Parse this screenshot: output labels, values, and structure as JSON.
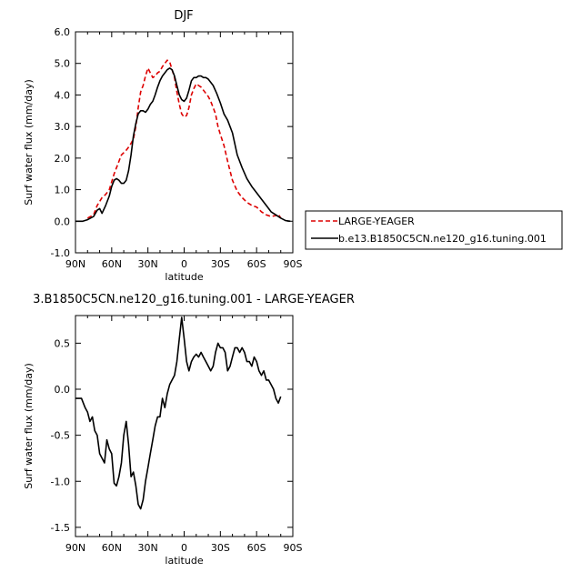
{
  "chart_data": [
    {
      "type": "line",
      "title": "DJF",
      "xlabel": "latitude",
      "ylabel": "Surf water flux (mm/day)",
      "xlim": [
        90,
        -90
      ],
      "ylim": [
        -1.0,
        6.0
      ],
      "x_ticks": [
        90,
        60,
        30,
        0,
        -30,
        -60,
        -90
      ],
      "x_tick_labels": [
        "90N",
        "60N",
        "30N",
        "0",
        "30S",
        "60S",
        "90S"
      ],
      "y_ticks": [
        -1.0,
        0.0,
        1.0,
        2.0,
        3.0,
        4.0,
        5.0,
        6.0
      ],
      "y_tick_labels": [
        "-1.0",
        "0.0",
        "1.0",
        "2.0",
        "3.0",
        "4.0",
        "5.0",
        "6.0"
      ],
      "grid": false,
      "legend": "right",
      "series": [
        {
          "name": "LARGE-YEAGER",
          "color": "#dd0000",
          "dash": true,
          "x": [
            80,
            75,
            72,
            68,
            65,
            62,
            58,
            55,
            52,
            48,
            45,
            42,
            40,
            38,
            36,
            34,
            32,
            30,
            28,
            26,
            24,
            22,
            20,
            18,
            16,
            14,
            12,
            10,
            8,
            6,
            4,
            2,
            0,
            -2,
            -4,
            -6,
            -8,
            -10,
            -12,
            -14,
            -16,
            -18,
            -20,
            -22,
            -24,
            -26,
            -28,
            -30,
            -33,
            -36,
            -40,
            -44,
            -48,
            -52,
            -56,
            -60,
            -64,
            -68,
            -72,
            -76,
            -78,
            -80
          ],
          "y": [
            0.1,
            0.2,
            0.5,
            0.75,
            0.85,
            1.0,
            1.5,
            1.8,
            2.1,
            2.25,
            2.4,
            2.6,
            3.0,
            3.6,
            4.1,
            4.3,
            4.6,
            4.85,
            4.7,
            4.55,
            4.6,
            4.7,
            4.75,
            4.9,
            5.0,
            5.1,
            5.05,
            4.8,
            4.55,
            4.1,
            3.7,
            3.4,
            3.3,
            3.35,
            3.6,
            4.0,
            4.2,
            4.35,
            4.3,
            4.25,
            4.15,
            4.05,
            3.95,
            3.8,
            3.6,
            3.4,
            3.0,
            2.75,
            2.4,
            1.9,
            1.3,
            0.95,
            0.75,
            0.6,
            0.5,
            0.45,
            0.3,
            0.2,
            0.15,
            0.18,
            0.22,
            0.1
          ]
        },
        {
          "name": "b.e13.B1850C5CN.ne120_g16.tuning.001",
          "color": "#000000",
          "dash": false,
          "x": [
            90,
            84,
            80,
            75,
            72,
            70,
            68,
            65,
            62,
            60,
            58,
            56,
            54,
            52,
            50,
            48,
            46,
            44,
            42,
            40,
            38,
            36,
            34,
            32,
            30,
            28,
            26,
            24,
            22,
            20,
            18,
            16,
            14,
            12,
            10,
            8,
            6,
            4,
            2,
            0,
            -2,
            -4,
            -6,
            -8,
            -10,
            -12,
            -14,
            -16,
            -18,
            -20,
            -22,
            -24,
            -27,
            -30,
            -33,
            -36,
            -40,
            -44,
            -48,
            -52,
            -56,
            -60,
            -64,
            -68,
            -72,
            -76,
            -80,
            -84,
            -88
          ],
          "y": [
            0.0,
            0.0,
            0.05,
            0.15,
            0.35,
            0.4,
            0.25,
            0.5,
            0.8,
            1.1,
            1.3,
            1.35,
            1.3,
            1.2,
            1.2,
            1.3,
            1.6,
            2.1,
            2.7,
            3.1,
            3.4,
            3.5,
            3.5,
            3.45,
            3.55,
            3.7,
            3.8,
            4.0,
            4.25,
            4.45,
            4.6,
            4.7,
            4.8,
            4.85,
            4.8,
            4.6,
            4.3,
            4.0,
            3.85,
            3.8,
            3.9,
            4.15,
            4.45,
            4.55,
            4.55,
            4.6,
            4.6,
            4.55,
            4.55,
            4.5,
            4.4,
            4.3,
            4.05,
            3.75,
            3.4,
            3.2,
            2.8,
            2.1,
            1.7,
            1.35,
            1.1,
            0.9,
            0.7,
            0.5,
            0.3,
            0.2,
            0.1,
            0.02,
            0.0
          ]
        }
      ]
    },
    {
      "type": "line",
      "title": "3.B1850C5CN.ne120_g16.tuning.001 - LARGE-YEAGER",
      "xlabel": "latitude",
      "ylabel": "Surf water flux (mm/day)",
      "xlim": [
        90,
        -90
      ],
      "ylim": [
        -1.6,
        0.8
      ],
      "x_ticks": [
        90,
        60,
        30,
        0,
        -30,
        -60,
        -90
      ],
      "x_tick_labels": [
        "90N",
        "60N",
        "30N",
        "0",
        "30S",
        "60S",
        "90S"
      ],
      "y_ticks": [
        -1.5,
        -1.0,
        -0.5,
        0.0,
        0.5
      ],
      "y_tick_labels": [
        "-1.5",
        "-1.0",
        "-0.5",
        "0.0",
        "0.5"
      ],
      "grid": false,
      "series": [
        {
          "color": "#000000",
          "dash": false,
          "x": [
            90,
            85,
            82,
            80,
            78,
            76,
            74,
            72,
            70,
            68,
            66,
            64,
            62,
            60,
            58,
            56,
            54,
            52,
            50,
            48,
            46,
            44,
            42,
            40,
            38,
            36,
            34,
            32,
            30,
            28,
            26,
            24,
            22,
            20,
            18,
            16,
            14,
            12,
            10,
            8,
            6,
            4,
            2,
            0,
            -2,
            -4,
            -6,
            -8,
            -10,
            -12,
            -14,
            -16,
            -18,
            -20,
            -22,
            -24,
            -26,
            -28,
            -30,
            -32,
            -34,
            -36,
            -38,
            -40,
            -42,
            -44,
            -46,
            -48,
            -50,
            -52,
            -54,
            -56,
            -58,
            -60,
            -62,
            -64,
            -66,
            -68,
            -70,
            -72,
            -74,
            -76,
            -78,
            -80
          ],
          "y": [
            -0.1,
            -0.1,
            -0.2,
            -0.25,
            -0.35,
            -0.3,
            -0.45,
            -0.5,
            -0.7,
            -0.75,
            -0.8,
            -0.55,
            -0.65,
            -0.7,
            -1.02,
            -1.05,
            -0.95,
            -0.8,
            -0.5,
            -0.35,
            -0.6,
            -0.95,
            -0.9,
            -1.05,
            -1.25,
            -1.3,
            -1.2,
            -1.0,
            -0.85,
            -0.7,
            -0.55,
            -0.4,
            -0.3,
            -0.3,
            -0.1,
            -0.2,
            -0.05,
            0.05,
            0.1,
            0.15,
            0.3,
            0.55,
            0.78,
            0.55,
            0.3,
            0.2,
            0.3,
            0.35,
            0.38,
            0.35,
            0.4,
            0.35,
            0.3,
            0.25,
            0.2,
            0.25,
            0.4,
            0.5,
            0.45,
            0.45,
            0.4,
            0.2,
            0.25,
            0.35,
            0.45,
            0.45,
            0.4,
            0.45,
            0.4,
            0.3,
            0.3,
            0.25,
            0.35,
            0.3,
            0.2,
            0.15,
            0.2,
            0.1,
            0.1,
            0.05,
            0.0,
            -0.1,
            -0.15,
            -0.08
          ]
        }
      ]
    }
  ]
}
